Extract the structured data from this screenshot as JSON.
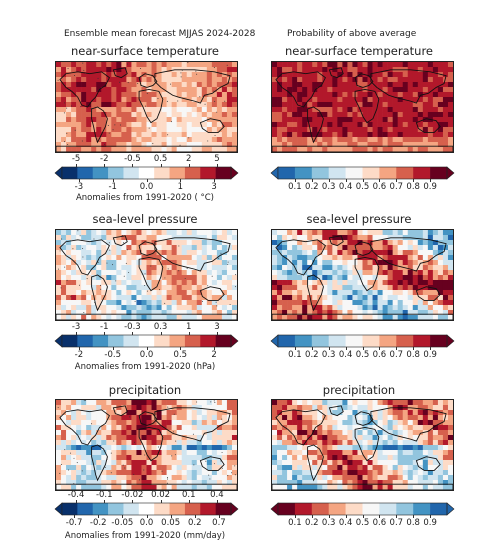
{
  "header": {
    "left": "Ensemble mean forecast MJJAS 2024-2028",
    "right": "Probability of above average"
  },
  "panels": {
    "temp": {
      "title": "near-surface temperature",
      "anomaly_ticks_top": [
        "-5",
        "-2",
        "-0.5",
        "0.5",
        "2",
        "5"
      ],
      "anomaly_ticks_bottom": [
        "-3",
        "-1",
        "0.0",
        "1",
        "3"
      ],
      "anomaly_label": "Anomalies from 1991-2020 ( °C)",
      "prob_ticks": [
        "0.1",
        "0.2",
        "0.3",
        "0.4",
        "0.5",
        "0.6",
        "0.7",
        "0.8",
        "0.9"
      ]
    },
    "slp": {
      "title": "sea-level pressure",
      "anomaly_ticks_top": [
        "-3",
        "-1",
        "-0.3",
        "0.3",
        "1",
        "3"
      ],
      "anomaly_ticks_bottom": [
        "-2",
        "-0.5",
        "0.0",
        "0.5",
        "2"
      ],
      "anomaly_label": "Anomalies from 1991-2020 (hPa)",
      "prob_ticks": [
        "0.1",
        "0.2",
        "0.3",
        "0.4",
        "0.5",
        "0.6",
        "0.7",
        "0.8",
        "0.9"
      ]
    },
    "precip": {
      "title": "precipitation",
      "anomaly_ticks_top": [
        "-0.4",
        "-0.1",
        "-0.02",
        "0.02",
        "0.1",
        "0.4"
      ],
      "anomaly_ticks_bottom": [
        "-0.7",
        "-0.2",
        "-0.05",
        "0.0",
        "0.05",
        "0.2",
        "0.7"
      ],
      "anomaly_label": "Anomalies from 1991-2020 (mm/day)",
      "prob_ticks": [
        "0.1",
        "0.2",
        "0.3",
        "0.4",
        "0.5",
        "0.6",
        "0.7",
        "0.8",
        "0.9"
      ]
    }
  },
  "colors": {
    "rdbu": [
      "#08306b",
      "#2166ac",
      "#4393c3",
      "#92c5de",
      "#d1e5f0",
      "#ffffff",
      "#fddbc7",
      "#f4a582",
      "#d6604d",
      "#b2182b",
      "#67001f"
    ],
    "prob_rdbu": [
      "#2166ac",
      "#4393c3",
      "#92c5de",
      "#d1e5f0",
      "#f7f7f7",
      "#fddbc7",
      "#f4a582",
      "#d6604d",
      "#b2182b",
      "#67001f"
    ],
    "prob_brbg_rev": [
      "#67001f",
      "#b2182b",
      "#d6604d",
      "#f4a582",
      "#fddbc7",
      "#f7f7f7",
      "#d1e5f0",
      "#92c5de",
      "#4393c3",
      "#2166ac"
    ]
  }
}
